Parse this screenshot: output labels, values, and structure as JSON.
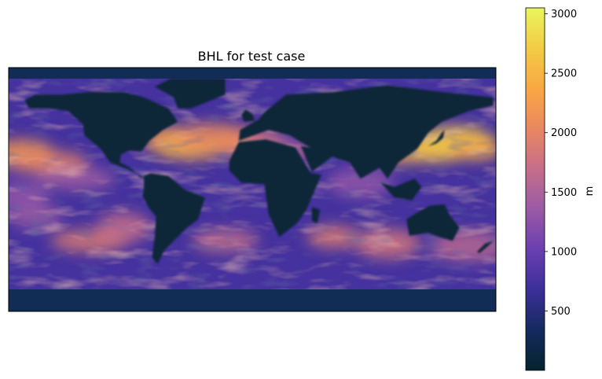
{
  "chart_data": {
    "type": "heatmap",
    "title": "BHL for test case",
    "xlabel": "",
    "ylabel": "",
    "colorbar": {
      "label": "m",
      "range": [
        0,
        3050
      ],
      "ticks": [
        500,
        1000,
        1500,
        2000,
        2500,
        3000
      ],
      "tick_labels": [
        "500",
        "1000",
        "1500",
        "2000",
        "2500",
        "3000"
      ],
      "colormap": "thermal",
      "colormap_stops": [
        "#04232e",
        "#152a5e",
        "#3b2f99",
        "#6a3fb0",
        "#9a5aa6",
        "#c66e8a",
        "#ea8760",
        "#f9a843",
        "#f3cb45",
        "#e8f65c"
      ]
    },
    "map": {
      "projection": "plate-carree",
      "lon_range": [
        -180,
        180
      ],
      "lat_range": [
        -90,
        90
      ],
      "land_color": "#0a2538",
      "polar_color": "#122d55",
      "ocean_base_value": 750,
      "features": [
        {
          "lon": -10,
          "lat": 32,
          "value": 2100
        },
        {
          "lon": 0,
          "lat": 35,
          "value": 1800
        },
        {
          "lon": 20,
          "lat": 28,
          "value": 1600
        },
        {
          "lon": 110,
          "lat": 30,
          "value": 2300
        },
        {
          "lon": 135,
          "lat": 28,
          "value": 2600
        },
        {
          "lon": 150,
          "lat": 36,
          "value": 2700
        },
        {
          "lon": 165,
          "lat": 30,
          "value": 2400
        },
        {
          "lon": -170,
          "lat": 26,
          "value": 2200
        },
        {
          "lon": -150,
          "lat": 20,
          "value": 2000
        },
        {
          "lon": -60,
          "lat": 36,
          "value": 2300
        },
        {
          "lon": -45,
          "lat": 30,
          "value": 2500
        },
        {
          "lon": -30,
          "lat": 38,
          "value": 2100
        },
        {
          "lon": 60,
          "lat": -35,
          "value": 1900
        },
        {
          "lon": 100,
          "lat": -40,
          "value": 1800
        },
        {
          "lon": -120,
          "lat": -38,
          "value": 1900
        },
        {
          "lon": -95,
          "lat": -28,
          "value": 1700
        },
        {
          "lon": -20,
          "lat": -38,
          "value": 1700
        },
        {
          "lon": 160,
          "lat": -42,
          "value": 1600
        },
        {
          "lon": -160,
          "lat": -20,
          "value": 1400
        },
        {
          "lon": 80,
          "lat": 5,
          "value": 1300
        },
        {
          "lon": -130,
          "lat": 8,
          "value": 1400
        },
        {
          "lon": -170,
          "lat": -5,
          "value": 1300
        }
      ]
    }
  }
}
